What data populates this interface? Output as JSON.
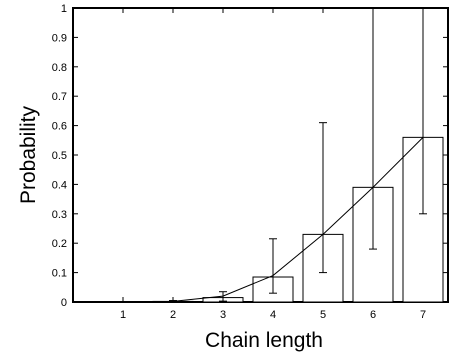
{
  "chart_data": {
    "type": "bar",
    "title": "",
    "xlabel": "Chain length",
    "ylabel": "Probability",
    "xlim": [
      0,
      7.5
    ],
    "ylim": [
      0,
      1
    ],
    "categories": [
      "1",
      "2",
      "3",
      "4",
      "5",
      "6",
      "7"
    ],
    "x": [
      1,
      2,
      3,
      4,
      5,
      6,
      7
    ],
    "values": [
      0.0,
      0.002,
      0.015,
      0.085,
      0.23,
      0.39,
      0.56
    ],
    "error_lower": [
      0.0,
      0.0,
      0.003,
      0.03,
      0.1,
      0.18,
      0.3
    ],
    "error_upper": [
      0.0,
      0.005,
      0.035,
      0.215,
      0.61,
      1.0,
      1.0
    ],
    "fit_line": {
      "x": [
        1,
        2,
        3,
        4,
        5,
        6,
        7
      ],
      "y": [
        0.0,
        0.002,
        0.02,
        0.09,
        0.23,
        0.39,
        0.56
      ]
    },
    "yticks": [
      "0",
      "0.1",
      "0.2",
      "0.3",
      "0.4",
      "0.5",
      "0.6",
      "0.7",
      "0.8",
      "0.9",
      "1"
    ],
    "xticks": [
      "1",
      "2",
      "3",
      "4",
      "5",
      "6",
      "7"
    ],
    "grid": false,
    "legend": "none",
    "bar_fill": "#ffffff",
    "stroke_color": "#000000"
  }
}
